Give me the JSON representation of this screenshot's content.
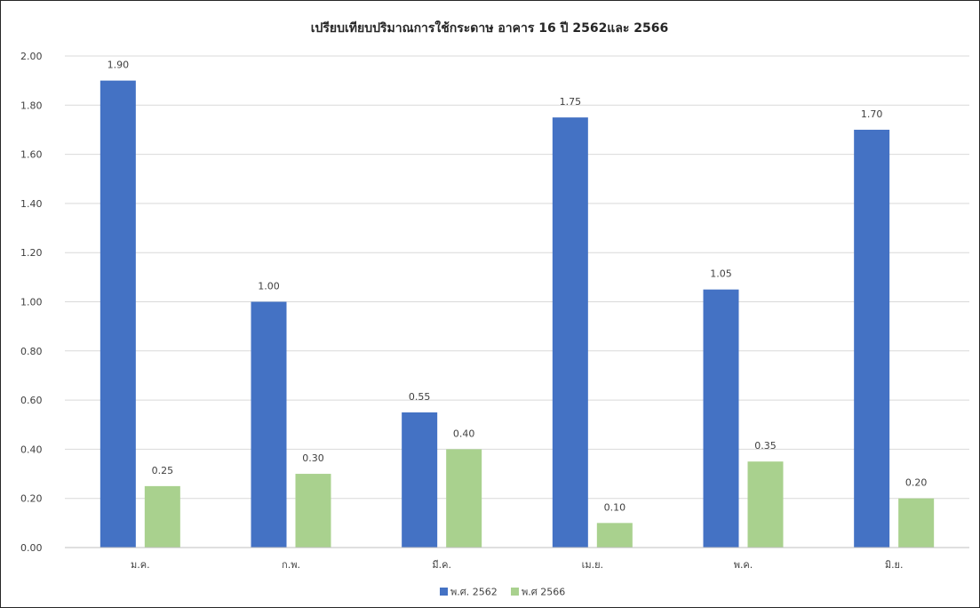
{
  "chart_data": {
    "type": "bar",
    "title": "เปรียบเทียบปริมาณการใช้กระดาษ อาคาร 16 ปี 2562และ 2566",
    "categories": [
      "ม.ค.",
      "ก.พ.",
      "มี.ค.",
      "เม.ย.",
      "พ.ค.",
      "มิ.ย."
    ],
    "series": [
      {
        "name": "พ.ศ. 2562",
        "color": "#4472c4",
        "values": [
          1.9,
          1.0,
          0.55,
          1.75,
          1.05,
          1.7
        ]
      },
      {
        "name": "พ.ศ 2566",
        "color": "#a9d18e",
        "values": [
          0.25,
          0.3,
          0.4,
          0.1,
          0.35,
          0.2
        ]
      }
    ],
    "ylim": [
      0,
      2.0
    ],
    "yticks": [
      "0.00",
      "0.20",
      "0.40",
      "0.60",
      "0.80",
      "1.00",
      "1.20",
      "1.40",
      "1.60",
      "1.80",
      "2.00"
    ],
    "data_labels": [
      [
        "1.90",
        "1.00",
        "0.55",
        "1.75",
        "1.05",
        "1.70"
      ],
      [
        "0.25",
        "0.30",
        "0.40",
        "0.10",
        "0.35",
        "0.20"
      ]
    ],
    "grid": true,
    "legend_position": "bottom"
  }
}
